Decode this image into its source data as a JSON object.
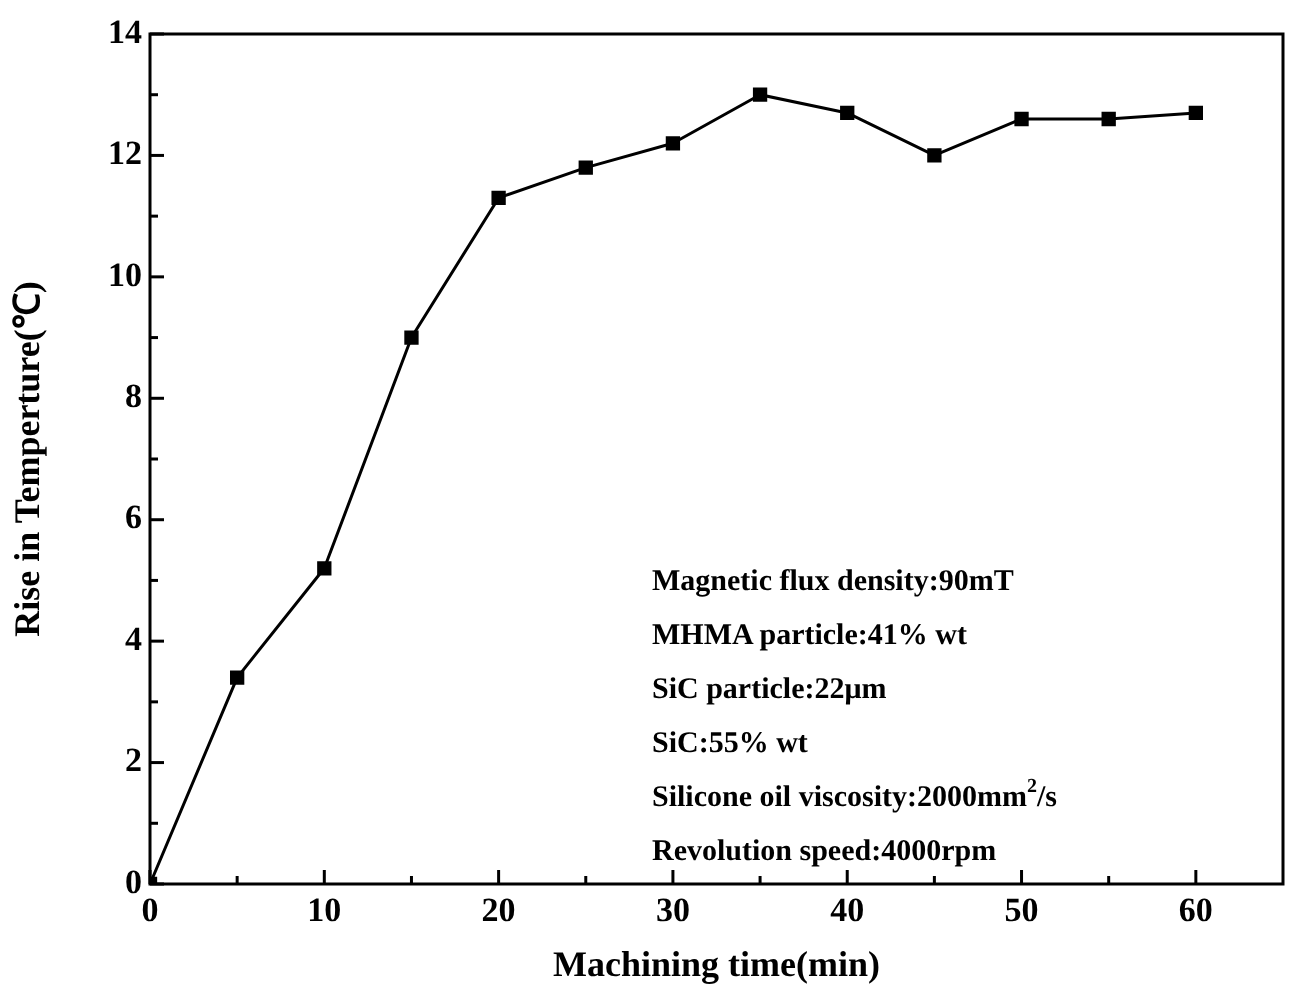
{
  "chart_data": {
    "type": "line",
    "xlabel": "Machining time(min)",
    "ylabel": "Rise in Temperture(℃)",
    "x": [
      0,
      5,
      10,
      15,
      20,
      25,
      30,
      35,
      40,
      45,
      50,
      55,
      60
    ],
    "series": [
      {
        "color": "#000000",
        "values": [
          0,
          3.4,
          5.2,
          9.0,
          11.3,
          11.8,
          12.2,
          13.0,
          12.7,
          12.0,
          12.6,
          12.6,
          12.7
        ]
      }
    ],
    "xlim": [
      0,
      65
    ],
    "xticks": [
      0,
      {
        "value": 5,
        "label": null
      },
      10,
      {
        "value": 15,
        "label": null
      },
      20,
      {
        "value": 25,
        "label": null
      },
      30,
      {
        "value": 35,
        "label": null
      },
      40,
      {
        "value": 45,
        "label": null
      },
      50,
      {
        "value": 55,
        "label": null
      },
      60
    ],
    "ylim": [
      0,
      14
    ],
    "yticks": [
      0,
      {
        "value": 1,
        "label": null
      },
      2,
      {
        "value": 3,
        "label": null
      },
      4,
      {
        "value": 5,
        "label": null
      },
      6,
      {
        "value": 7,
        "label": null
      },
      8,
      {
        "value": 9,
        "label": null
      },
      10,
      {
        "value": 11,
        "label": null
      },
      12,
      {
        "value": 13,
        "label": null
      },
      14
    ],
    "annotations": [
      "Magnetic flux density:90mT",
      "MHMA particle:41% wt",
      "SiC particle:22μm",
      "SiC:55% wt",
      "Silicone oil viscosity:2000mm$^{2}$/s",
      "Revolution speed:4000rpm"
    ],
    "grid": false,
    "legend": false,
    "marker": "square",
    "line_style": "solid"
  }
}
